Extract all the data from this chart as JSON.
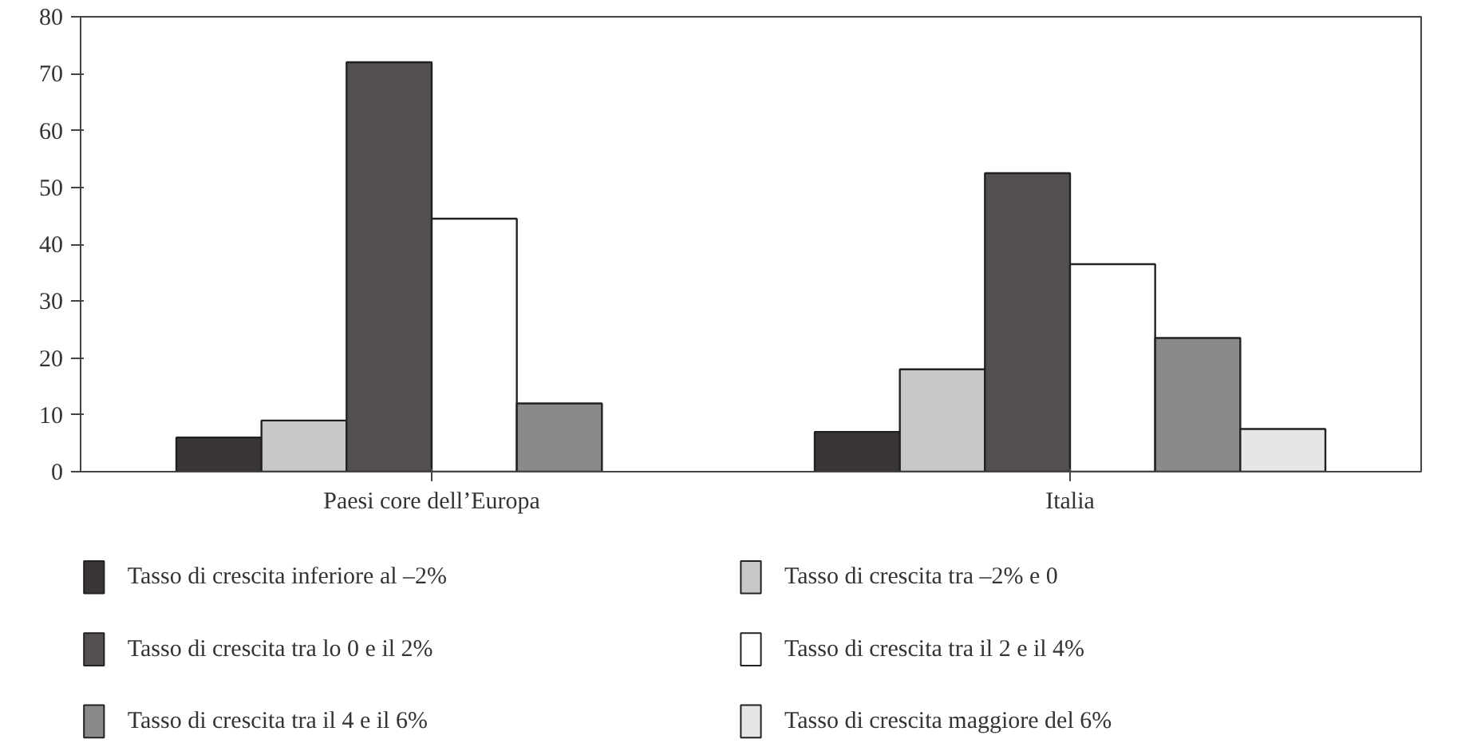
{
  "chart_data": {
    "type": "bar",
    "categories": [
      "Paesi core dell’Europa",
      "Italia"
    ],
    "series": [
      {
        "name": "Tasso di crescita inferiore al –2%",
        "color": "#3a3636",
        "values": [
          6,
          7
        ]
      },
      {
        "name": "Tasso di crescita tra –2% e 0",
        "color": "#c8c8c8",
        "values": [
          9,
          18
        ]
      },
      {
        "name": "Tasso di crescita tra lo 0 e il 2%",
        "color": "#555050",
        "values": [
          72,
          52.5
        ]
      },
      {
        "name": "Tasso di crescita tra il 2 e il 4%",
        "color": "#ffffff",
        "values": [
          44.5,
          36.5
        ]
      },
      {
        "name": "Tasso di crescita tra il 4 e il 6%",
        "color": "#8a8a8a",
        "values": [
          12,
          23.5
        ]
      },
      {
        "name": "Tasso di crescita maggiore del 6%",
        "color": "#e6e6e6",
        "values": [
          null,
          7.5
        ]
      }
    ],
    "ylim": [
      0,
      80
    ],
    "yticks": [
      0,
      10,
      20,
      30,
      40,
      50,
      60,
      70,
      80
    ],
    "grid": false,
    "legend": "bottom"
  }
}
